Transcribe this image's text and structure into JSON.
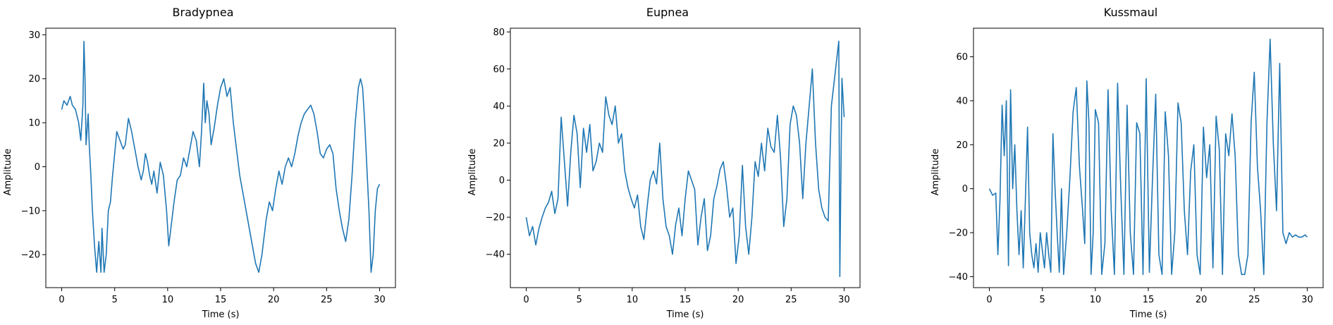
{
  "figure": {
    "background": "#ffffff",
    "line_color": "#1f77b4"
  },
  "chart_data": [
    {
      "type": "line",
      "title": "Bradypnea",
      "xlabel": "Time (s)",
      "ylabel": "Amplitude",
      "xlim": [
        -1.5,
        31.5
      ],
      "ylim": [
        -27.5,
        31.5
      ],
      "xticks": [
        0,
        5,
        10,
        15,
        20,
        25,
        30
      ],
      "yticks": [
        -20,
        -10,
        0,
        10,
        20,
        30
      ],
      "grid": false,
      "series": [
        {
          "x": [
            0,
            0.2,
            0.5,
            0.8,
            1.0,
            1.3,
            1.6,
            1.8,
            2.0,
            2.1,
            2.2,
            2.3,
            2.5,
            2.6,
            2.75,
            2.9,
            3.1,
            3.3,
            3.5,
            3.7,
            3.8,
            4.0,
            4.2,
            4.4,
            4.6,
            4.8,
            5.0,
            5.2,
            5.5,
            5.8,
            6.0,
            6.3,
            6.6,
            6.9,
            7.2,
            7.5,
            7.7,
            7.9,
            8.1,
            8.3,
            8.5,
            8.7,
            9.0,
            9.3,
            9.6,
            9.9,
            10.1,
            10.3,
            10.6,
            10.9,
            11.2,
            11.5,
            11.8,
            12.1,
            12.4,
            12.7,
            13.0,
            13.2,
            13.4,
            13.55,
            13.7,
            13.9,
            14.1,
            14.4,
            14.7,
            15.0,
            15.3,
            15.6,
            15.9,
            16.2,
            16.5,
            16.8,
            17.1,
            17.4,
            17.7,
            18.0,
            18.3,
            18.6,
            18.9,
            19.1,
            19.3,
            19.6,
            19.9,
            20.2,
            20.5,
            20.8,
            21.1,
            21.4,
            21.7,
            22.0,
            22.3,
            22.6,
            22.9,
            23.2,
            23.5,
            23.8,
            24.1,
            24.4,
            24.7,
            25.0,
            25.3,
            25.6,
            25.9,
            26.2,
            26.5,
            26.8,
            27.1,
            27.4,
            27.7,
            28.0,
            28.2,
            28.4,
            28.6,
            28.8,
            29.0,
            29.2,
            29.4,
            29.6,
            29.8,
            30.0
          ],
          "y": [
            13,
            15,
            14,
            16,
            14,
            13,
            10,
            6,
            14,
            28.5,
            20,
            5,
            12,
            5,
            -2,
            -10,
            -18,
            -24,
            -17,
            -24,
            -14,
            -24,
            -20,
            -10,
            -8,
            -2,
            3,
            8,
            6,
            4,
            5,
            11,
            8,
            4,
            0,
            -3,
            -1,
            3,
            1,
            -2,
            -4,
            -1,
            -6,
            1,
            -2,
            -10,
            -18,
            -14,
            -8,
            -3,
            -2,
            2,
            0,
            4,
            8,
            6,
            0,
            8,
            19,
            10,
            15,
            12,
            5,
            9,
            14,
            18,
            20,
            16,
            18,
            10,
            4,
            -2,
            -6,
            -10,
            -14,
            -18,
            -22,
            -24,
            -20,
            -16,
            -12,
            -8,
            -10,
            -5,
            -1,
            -4,
            0,
            2,
            0,
            3,
            7,
            10,
            12,
            13,
            14,
            12,
            8,
            3,
            2,
            4,
            5,
            3,
            -5,
            -10,
            -14,
            -17,
            -12,
            -2,
            10,
            18,
            20,
            18,
            10,
            0,
            -10,
            -24,
            -20,
            -10,
            -5,
            -4
          ]
        }
      ]
    },
    {
      "type": "line",
      "title": "Eupnea",
      "xlabel": "Time (s)",
      "ylabel": "Amplitude",
      "xlim": [
        -1.5,
        31.5
      ],
      "ylim": [
        -58,
        82
      ],
      "xticks": [
        0,
        5,
        10,
        15,
        20,
        25,
        30
      ],
      "yticks": [
        -40,
        -20,
        0,
        20,
        40,
        60,
        80
      ],
      "grid": false,
      "series": [
        {
          "x": [
            0,
            0.3,
            0.6,
            0.9,
            1.2,
            1.5,
            1.8,
            2.1,
            2.4,
            2.7,
            3.0,
            3.3,
            3.6,
            3.9,
            4.2,
            4.5,
            4.8,
            5.1,
            5.4,
            5.7,
            6.0,
            6.3,
            6.6,
            6.9,
            7.2,
            7.5,
            7.8,
            8.1,
            8.4,
            8.7,
            9.0,
            9.3,
            9.6,
            9.9,
            10.2,
            10.5,
            10.8,
            11.1,
            11.4,
            11.7,
            12.0,
            12.3,
            12.6,
            12.9,
            13.2,
            13.5,
            13.8,
            14.1,
            14.4,
            14.7,
            15.0,
            15.3,
            15.6,
            15.9,
            16.2,
            16.5,
            16.8,
            17.1,
            17.4,
            17.7,
            18.0,
            18.3,
            18.6,
            18.9,
            19.2,
            19.5,
            19.8,
            20.1,
            20.4,
            20.7,
            21.0,
            21.3,
            21.6,
            21.9,
            22.2,
            22.5,
            22.8,
            23.1,
            23.4,
            23.7,
            24.0,
            24.3,
            24.6,
            24.9,
            25.2,
            25.5,
            25.8,
            26.1,
            26.4,
            26.7,
            27.0,
            27.3,
            27.6,
            27.9,
            28.2,
            28.5,
            28.8,
            29.1,
            29.4,
            29.5,
            29.6,
            29.8,
            30.0
          ],
          "y": [
            -20,
            -30,
            -25,
            -35,
            -26,
            -20,
            -15,
            -12,
            -6,
            -18,
            -10,
            34,
            10,
            -14,
            15,
            35,
            25,
            -4,
            28,
            15,
            30,
            5,
            10,
            20,
            15,
            45,
            35,
            30,
            40,
            20,
            25,
            5,
            -4,
            -10,
            -15,
            -8,
            -25,
            -32,
            -15,
            0,
            5,
            -2,
            20,
            -10,
            -25,
            -30,
            -40,
            -24,
            -15,
            -30,
            -10,
            5,
            0,
            -5,
            -35,
            -20,
            -10,
            -38,
            -30,
            -10,
            -3,
            6,
            10,
            -3,
            -20,
            -15,
            -45,
            -30,
            8,
            -25,
            -40,
            -20,
            10,
            2,
            20,
            5,
            28,
            18,
            15,
            35,
            12,
            -25,
            -10,
            30,
            40,
            35,
            20,
            -10,
            20,
            40,
            60,
            20,
            -5,
            -15,
            -20,
            -22,
            40,
            55,
            70,
            75,
            -52,
            55,
            34
          ]
        }
      ]
    },
    {
      "type": "line",
      "title": "Kussmaul",
      "xlabel": "Time (s)",
      "ylabel": "Amplitude",
      "xlim": [
        -1.5,
        31.5
      ],
      "ylim": [
        -45,
        73
      ],
      "xticks": [
        0,
        5,
        10,
        15,
        20,
        25,
        30
      ],
      "yticks": [
        -40,
        -20,
        0,
        20,
        40,
        60
      ],
      "grid": false,
      "series": [
        {
          "x": [
            0,
            0.3,
            0.6,
            0.8,
            1.0,
            1.2,
            1.4,
            1.6,
            1.8,
            2.0,
            2.2,
            2.4,
            2.6,
            2.8,
            3.0,
            3.2,
            3.4,
            3.6,
            3.8,
            4.0,
            4.2,
            4.4,
            4.6,
            4.8,
            5.0,
            5.2,
            5.4,
            5.6,
            5.8,
            6.0,
            6.2,
            6.4,
            6.6,
            6.8,
            7.0,
            7.3,
            7.6,
            7.9,
            8.2,
            8.5,
            8.8,
            9.0,
            9.2,
            9.4,
            9.6,
            9.8,
            10.0,
            10.3,
            10.6,
            10.9,
            11.2,
            11.5,
            11.8,
            12.1,
            12.4,
            12.7,
            13.0,
            13.3,
            13.6,
            13.9,
            14.2,
            14.5,
            14.8,
            15.1,
            15.4,
            15.7,
            16.0,
            16.3,
            16.6,
            16.9,
            17.2,
            17.5,
            17.8,
            18.1,
            18.4,
            18.7,
            19.0,
            19.3,
            19.6,
            19.9,
            20.2,
            20.5,
            20.8,
            21.1,
            21.4,
            21.7,
            22.0,
            22.3,
            22.6,
            22.9,
            23.2,
            23.5,
            23.8,
            24.1,
            24.4,
            24.7,
            25.0,
            25.3,
            25.6,
            25.9,
            26.2,
            26.5,
            26.8,
            27.1,
            27.4,
            27.7,
            28.0,
            28.3,
            28.6,
            28.9,
            29.2,
            29.5,
            29.8,
            30.0
          ],
          "y": [
            0,
            -3,
            -2,
            -30,
            -5,
            38,
            15,
            40,
            -35,
            45,
            0,
            20,
            -10,
            -30,
            -10,
            -36,
            -5,
            28,
            -20,
            -30,
            -36,
            -25,
            -38,
            -20,
            -28,
            -36,
            -20,
            -30,
            -38,
            25,
            0,
            -20,
            -38,
            0,
            -39,
            -20,
            5,
            35,
            46,
            10,
            -10,
            -25,
            49,
            30,
            -39,
            -20,
            36,
            30,
            -39,
            -25,
            45,
            -10,
            -39,
            48,
            0,
            -39,
            38,
            -20,
            -39,
            30,
            25,
            -39,
            50,
            -38,
            5,
            43,
            -30,
            -39,
            35,
            15,
            -39,
            -20,
            39,
            30,
            -10,
            -30,
            8,
            20,
            -30,
            -39,
            28,
            5,
            20,
            -36,
            33,
            18,
            -39,
            25,
            15,
            34,
            15,
            -30,
            -39,
            -39,
            -30,
            30,
            53,
            10,
            -10,
            -39,
            30,
            68,
            20,
            -10,
            57,
            -20,
            -25,
            -20,
            -22,
            -21,
            -22,
            -22,
            -21,
            -22
          ]
        }
      ]
    }
  ]
}
